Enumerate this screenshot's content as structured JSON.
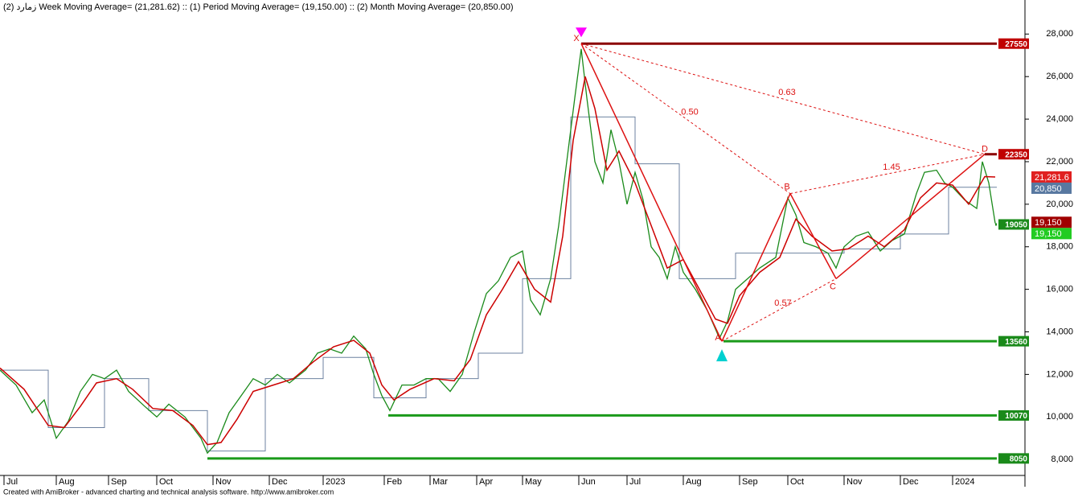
{
  "chart_data": {
    "type": "line",
    "title": "زمارد (2) Week Moving Average= (21,281.62) :: (1) Period Moving Average= (19,150.00) :: (2) Month Moving Average= (20,850.00)",
    "footer": "Created with AmiBroker - advanced charting and technical analysis software. http://www.amibroker.com",
    "xlim": [
      0,
      1275
    ],
    "ylim": [
      7250,
      29600
    ],
    "xticks": [
      {
        "value": 5,
        "label": "Jul"
      },
      {
        "value": 70,
        "label": "Aug"
      },
      {
        "value": 135,
        "label": "Sep"
      },
      {
        "value": 195,
        "label": "Oct"
      },
      {
        "value": 265,
        "label": "Nov"
      },
      {
        "value": 335,
        "label": "Dec"
      },
      {
        "value": 402,
        "label": "2023"
      },
      {
        "value": 478,
        "label": "Feb"
      },
      {
        "value": 535,
        "label": "Mar"
      },
      {
        "value": 593,
        "label": "Apr"
      },
      {
        "value": 650,
        "label": "May"
      },
      {
        "value": 720,
        "label": "Jun"
      },
      {
        "value": 780,
        "label": "Jul"
      },
      {
        "value": 850,
        "label": "Aug"
      },
      {
        "value": 920,
        "label": "Sep"
      },
      {
        "value": 980,
        "label": "Oct"
      },
      {
        "value": 1050,
        "label": "Nov"
      },
      {
        "value": 1120,
        "label": "Dec"
      },
      {
        "value": 1185,
        "label": "2024"
      }
    ],
    "yticks": [
      {
        "value": 8000,
        "label": "8,000"
      },
      {
        "value": 10000,
        "label": "10,000"
      },
      {
        "value": 12000,
        "label": "12,000"
      },
      {
        "value": 14000,
        "label": "14,000"
      },
      {
        "value": 16000,
        "label": "16,000"
      },
      {
        "value": 18000,
        "label": "18,000"
      },
      {
        "value": 20000,
        "label": "20,000"
      },
      {
        "value": 22000,
        "label": "22,000"
      },
      {
        "value": 24000,
        "label": "24,000"
      },
      {
        "value": 26000,
        "label": "26,000"
      },
      {
        "value": 28000,
        "label": "28,000"
      }
    ],
    "series": [
      {
        "color": "#6d82a0",
        "width": 1,
        "x": [
          0,
          60,
          60,
          130,
          130,
          185,
          185,
          258,
          258,
          330,
          330,
          402,
          402,
          465,
          465,
          530,
          530,
          595,
          595,
          650,
          650,
          710,
          710,
          790,
          790,
          845,
          845,
          915,
          915,
          985,
          985,
          1050,
          1050,
          1120,
          1120,
          1180,
          1180,
          1240
        ],
        "values": [
          12200,
          12200,
          9500,
          9500,
          11800,
          11800,
          10300,
          10300,
          8400,
          8400,
          11800,
          11800,
          12800,
          12800,
          10900,
          10900,
          11800,
          11800,
          13000,
          13000,
          16500,
          16500,
          24100,
          24100,
          21900,
          21900,
          16500,
          16500,
          17700,
          17700,
          17700,
          17700,
          17900,
          17900,
          18600,
          18600,
          20800,
          20800
        ]
      },
      {
        "color": "#1a8a1a",
        "width": 1.3,
        "x": [
          0,
          20,
          40,
          55,
          70,
          85,
          100,
          115,
          130,
          145,
          160,
          180,
          195,
          210,
          230,
          250,
          258,
          270,
          285,
          300,
          315,
          330,
          345,
          360,
          380,
          395,
          410,
          425,
          440,
          455,
          465,
          475,
          485,
          500,
          515,
          530,
          545,
          560,
          575,
          590,
          605,
          620,
          635,
          650,
          660,
          672,
          685,
          695,
          705,
          715,
          723,
          730,
          740,
          750,
          760,
          770,
          780,
          790,
          800,
          810,
          820,
          830,
          840,
          850,
          865,
          880,
          895,
          905,
          915,
          930,
          945,
          965,
          980,
          990,
          1000,
          1015,
          1030,
          1040,
          1050,
          1065,
          1080,
          1095,
          1110,
          1125,
          1140,
          1150,
          1165,
          1175,
          1185,
          1200,
          1215,
          1222,
          1230,
          1238
        ],
        "values": [
          12200,
          11500,
          10200,
          10800,
          9000,
          9800,
          11200,
          12000,
          11800,
          12200,
          11200,
          10500,
          10000,
          10600,
          10000,
          9000,
          8300,
          8800,
          10200,
          11000,
          11800,
          11500,
          12000,
          11600,
          12200,
          13000,
          13200,
          13000,
          13800,
          13200,
          12000,
          11000,
          10300,
          11500,
          11500,
          11800,
          11800,
          11200,
          12000,
          14000,
          15800,
          16400,
          17500,
          17800,
          15500,
          14800,
          16500,
          19000,
          22000,
          25000,
          27300,
          25000,
          22000,
          21000,
          23500,
          22000,
          20000,
          21500,
          20200,
          18000,
          17500,
          16500,
          18000,
          16800,
          16000,
          15000,
          13700,
          14500,
          16000,
          16500,
          17000,
          17500,
          20300,
          19500,
          18200,
          18000,
          17700,
          17000,
          18000,
          18500,
          18700,
          17800,
          18300,
          18600,
          20500,
          21500,
          21600,
          21000,
          20800,
          20200,
          19800,
          22000,
          21000,
          19100
        ]
      },
      {
        "color": "#cc0000",
        "width": 1.5,
        "x": [
          0,
          30,
          60,
          80,
          100,
          120,
          145,
          165,
          190,
          215,
          240,
          258,
          275,
          295,
          315,
          340,
          365,
          390,
          415,
          440,
          460,
          475,
          490,
          510,
          540,
          565,
          585,
          605,
          625,
          645,
          665,
          685,
          700,
          713,
          728,
          740,
          755,
          770,
          790,
          810,
          830,
          850,
          870,
          890,
          905,
          920,
          945,
          970,
          990,
          1010,
          1035,
          1055,
          1080,
          1100,
          1125,
          1145,
          1165,
          1185,
          1205,
          1225,
          1238
        ],
        "values": [
          12300,
          11300,
          9600,
          9500,
          10500,
          11600,
          11800,
          11300,
          10400,
          10300,
          9600,
          8700,
          8800,
          9900,
          11200,
          11500,
          11800,
          12600,
          13300,
          13600,
          13000,
          11500,
          10800,
          11300,
          11800,
          11700,
          12700,
          14800,
          16000,
          17300,
          16000,
          15400,
          18500,
          23000,
          26000,
          24500,
          21600,
          22500,
          21000,
          19000,
          17000,
          17400,
          16000,
          14600,
          14400,
          15700,
          16800,
          17500,
          19300,
          18500,
          17800,
          17900,
          18500,
          18000,
          18800,
          20300,
          21000,
          20900,
          20000,
          21300,
          21280
        ]
      }
    ],
    "levels": [
      {
        "value": 27550,
        "color": "#8b0000",
        "box": "#c00000",
        "x": 723
      },
      {
        "value": 22350,
        "color": "#8b0000",
        "box": "#c00000",
        "x": 1225
      },
      {
        "value": 19050,
        "color": "#1a8a1a",
        "box": "#1a8a1a",
        "x": 1238
      },
      {
        "value": 13560,
        "color": "#1a9a1a",
        "box": "#1a8a1a",
        "x": 900
      },
      {
        "value": 10070,
        "color": "#1a9a1a",
        "box": "#1a8a1a",
        "x": 483
      },
      {
        "value": 8050,
        "color": "#1a9a1a",
        "box": "#1a8a1a",
        "x": 258
      }
    ],
    "price_boxes": [
      {
        "value": 21281.62,
        "value_label": "21,281.6",
        "color": "#e02020"
      },
      {
        "value": 20850,
        "value_label": "20,850",
        "color": "#5878a0"
      },
      {
        "value": 19150,
        "value_label": "19,150",
        "color": "#a00000"
      },
      {
        "value": 19150,
        "value_label": "19,150",
        "color": "#22cc22"
      }
    ],
    "pattern": {
      "points": [
        {
          "label": "X",
          "x": 723,
          "value": 27550
        },
        {
          "label": "A",
          "x": 898,
          "value": 13560
        },
        {
          "label": "B",
          "x": 983,
          "value": 20500
        },
        {
          "label": "C",
          "x": 1040,
          "value": 16500
        },
        {
          "label": "D",
          "x": 1225,
          "value": 22350
        }
      ],
      "ratios": [
        "0.50",
        "0.63",
        "0.57",
        "1.45"
      ]
    }
  }
}
